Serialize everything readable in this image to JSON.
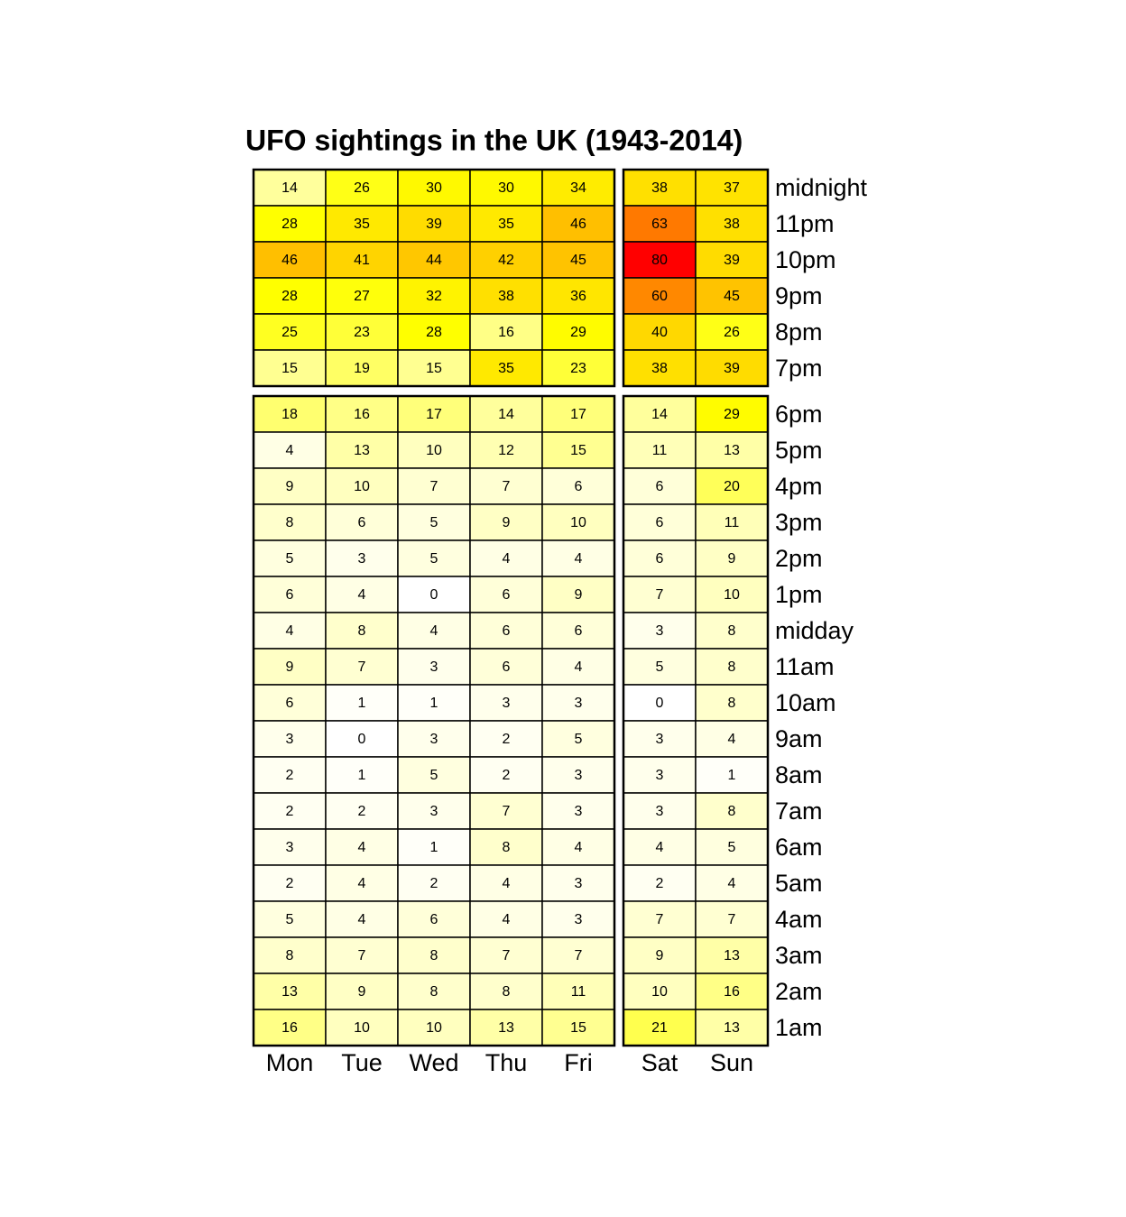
{
  "chart_data": {
    "type": "heatmap",
    "title": "UFO sightings in the UK (1943-2014)",
    "xlabel": "",
    "ylabel": "",
    "days": [
      "Mon",
      "Tue",
      "Wed",
      "Thu",
      "Fri",
      "Sat",
      "Sun"
    ],
    "day_groups": [
      [
        "Mon",
        "Tue",
        "Wed",
        "Thu",
        "Fri"
      ],
      [
        "Sat",
        "Sun"
      ]
    ],
    "hours": [
      "midnight",
      "11pm",
      "10pm",
      "9pm",
      "8pm",
      "7pm",
      "6pm",
      "5pm",
      "4pm",
      "3pm",
      "2pm",
      "1pm",
      "midday",
      "11am",
      "10am",
      "9am",
      "8am",
      "7am",
      "6am",
      "5am",
      "4am",
      "3am",
      "2am",
      "1am"
    ],
    "hour_groups": [
      [
        "midnight",
        "11pm",
        "10pm",
        "9pm",
        "8pm",
        "7pm"
      ],
      [
        "6pm",
        "5pm",
        "4pm",
        "3pm",
        "2pm",
        "1pm",
        "midday",
        "11am",
        "10am",
        "9am",
        "8am",
        "7am",
        "6am",
        "5am",
        "4am",
        "3am",
        "2am",
        "1am"
      ]
    ],
    "values": [
      [
        14,
        26,
        30,
        30,
        34,
        38,
        37
      ],
      [
        28,
        35,
        39,
        35,
        46,
        63,
        38
      ],
      [
        46,
        41,
        44,
        42,
        45,
        80,
        39
      ],
      [
        28,
        27,
        32,
        38,
        36,
        60,
        45
      ],
      [
        25,
        23,
        28,
        16,
        29,
        40,
        26
      ],
      [
        15,
        19,
        15,
        35,
        23,
        38,
        39
      ],
      [
        18,
        16,
        17,
        14,
        17,
        14,
        29
      ],
      [
        4,
        13,
        10,
        12,
        15,
        11,
        13
      ],
      [
        9,
        10,
        7,
        7,
        6,
        6,
        20
      ],
      [
        8,
        6,
        5,
        9,
        10,
        6,
        11
      ],
      [
        5,
        3,
        5,
        4,
        4,
        6,
        9
      ],
      [
        6,
        4,
        0,
        6,
        9,
        7,
        10
      ],
      [
        4,
        8,
        4,
        6,
        6,
        3,
        8
      ],
      [
        9,
        7,
        3,
        6,
        4,
        5,
        8
      ],
      [
        6,
        1,
        1,
        3,
        3,
        0,
        8
      ],
      [
        3,
        0,
        3,
        2,
        5,
        3,
        4
      ],
      [
        2,
        1,
        5,
        2,
        3,
        3,
        1
      ],
      [
        2,
        2,
        3,
        7,
        3,
        3,
        8
      ],
      [
        3,
        4,
        1,
        8,
        4,
        4,
        5
      ],
      [
        2,
        4,
        2,
        4,
        3,
        2,
        4
      ],
      [
        5,
        4,
        6,
        4,
        3,
        7,
        7
      ],
      [
        8,
        7,
        8,
        7,
        7,
        9,
        13
      ],
      [
        13,
        9,
        8,
        8,
        11,
        10,
        16
      ],
      [
        16,
        10,
        10,
        13,
        15,
        21,
        13
      ]
    ],
    "colors": {
      "low": "#ffffff",
      "light_yellow": "#ffffb2",
      "yellow": "#ffff00",
      "gold": "#ffe000",
      "amber": "#ffbf00",
      "orange": "#ff8000",
      "high": "#ff0000",
      "border": "#000000",
      "text": "#000000"
    },
    "grid": true,
    "legend": "none"
  }
}
